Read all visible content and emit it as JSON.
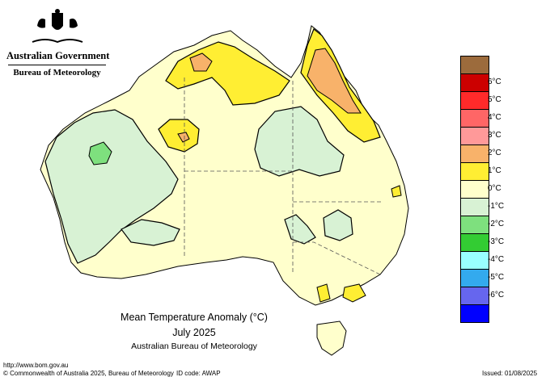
{
  "header": {
    "government": "Australian Government",
    "bureau": "Bureau of Meteorology"
  },
  "map": {
    "title": "Mean Temperature Anomaly (°C)",
    "period": "July 2025",
    "source": "Australian Bureau of Meteorology"
  },
  "legend": {
    "items": [
      {
        "label": "",
        "color": "#9c6b3c"
      },
      {
        "label": "6°C",
        "color": "#cc0000"
      },
      {
        "label": "5°C",
        "color": "#ff2a2a"
      },
      {
        "label": "4°C",
        "color": "#ff6666"
      },
      {
        "label": "3°C",
        "color": "#ff9999"
      },
      {
        "label": "2°C",
        "color": "#f8b26a"
      },
      {
        "label": "1°C",
        "color": "#ffee33"
      },
      {
        "label": "0°C",
        "color": "#ffffcc"
      },
      {
        "label": "-1°C",
        "color": "#d8f2d4"
      },
      {
        "label": "-2°C",
        "color": "#7ee07e"
      },
      {
        "label": "-3°C",
        "color": "#33cc33"
      },
      {
        "label": "-4°C",
        "color": "#99ffff"
      },
      {
        "label": "-5°C",
        "color": "#33aaee"
      },
      {
        "label": "-6°C",
        "color": "#6666ee"
      },
      {
        "label": "",
        "color": "#0000ff"
      }
    ]
  },
  "footer": {
    "url": "http://www.bom.gov.au",
    "copyright": "© Commonwealth of Australia 2025, Bureau of Meteorology",
    "id_code": "ID code: AWAP",
    "issued": "Issued: 01/08/2025"
  }
}
